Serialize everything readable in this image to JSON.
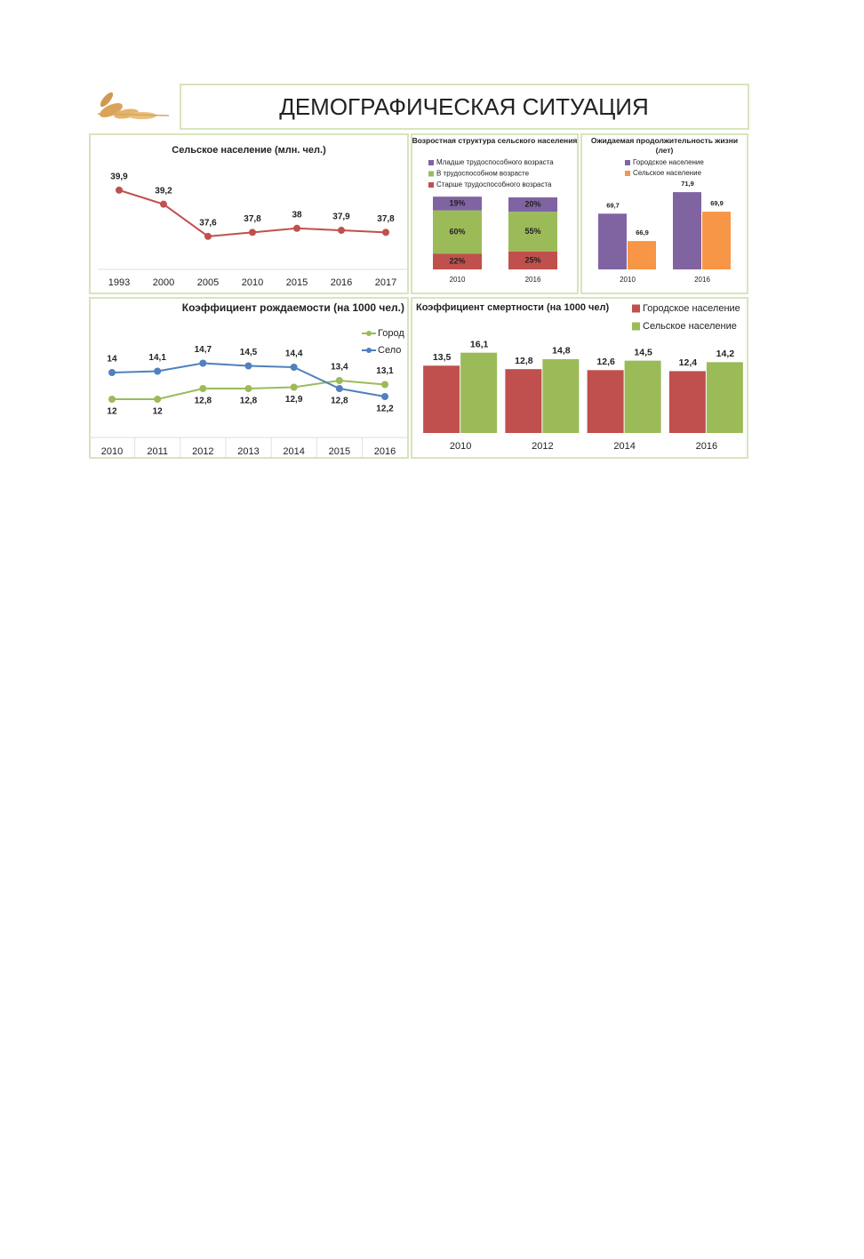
{
  "header": {
    "title": "ДЕМОГРАФИЧЕСКАЯ СИТУАЦИЯ"
  },
  "chart_data": [
    {
      "type": "line",
      "title": "Сельское население (млн. чел.)",
      "categories": [
        "1993",
        "2000",
        "2005",
        "2010",
        "2015",
        "2016",
        "2017"
      ],
      "values": [
        39.9,
        39.2,
        37.6,
        37.8,
        38,
        37.9,
        37.8
      ],
      "value_labels": [
        "39,9",
        "39,2",
        "37,6",
        "37,8",
        "38",
        "37,9",
        "37,8"
      ],
      "color": "#c0504d",
      "ylim": [
        36,
        41
      ]
    },
    {
      "type": "stacked_bar",
      "title": "Возростная структура сельского населения",
      "categories": [
        "2010",
        "2016"
      ],
      "series": [
        {
          "name": "Младше трудоспособного возраста",
          "color": "#8064a2",
          "values": [
            19,
            20
          ],
          "value_labels": [
            "19%",
            "20%"
          ]
        },
        {
          "name": "В трудоспособном возрасте",
          "color": "#9bbb59",
          "values": [
            60,
            55
          ],
          "value_labels": [
            "60%",
            "55%"
          ]
        },
        {
          "name": "Старше трудоспособного возраста",
          "color": "#c0504d",
          "values": [
            22,
            25
          ],
          "value_labels": [
            "22%",
            "25%"
          ]
        }
      ],
      "ylim": [
        0,
        100
      ]
    },
    {
      "type": "bar",
      "title": "Ожидаемая продолжительность жизни (лет)",
      "categories": [
        "2010",
        "2016"
      ],
      "series": [
        {
          "name": "Городское население",
          "color": "#8064a2",
          "values": [
            69.7,
            71.9
          ],
          "value_labels": [
            "69,7",
            "71,9"
          ]
        },
        {
          "name": "Сельское население",
          "color": "#f79646",
          "values": [
            66.9,
            69.9
          ],
          "value_labels": [
            "66,9",
            "69,9"
          ]
        }
      ],
      "ylim": [
        64,
        73
      ]
    },
    {
      "type": "line",
      "title": "Коэффициент рождаемости (на 1000 чел.)",
      "categories": [
        "2010",
        "2011",
        "2012",
        "2013",
        "2014",
        "2015",
        "2016"
      ],
      "series": [
        {
          "name": "Город",
          "color": "#9bbb59",
          "values": [
            12,
            12,
            12.8,
            12.8,
            12.9,
            13.4,
            13.1
          ],
          "value_labels": [
            "12",
            "12",
            "12,8",
            "12,8",
            "12,9",
            "13,4",
            "13,1"
          ]
        },
        {
          "name": "Село",
          "color": "#4f81bd",
          "values": [
            14,
            14.1,
            14.7,
            14.5,
            14.4,
            12.8,
            12.2
          ],
          "value_labels": [
            "14",
            "14,1",
            "14,7",
            "14,5",
            "14,4",
            "12,8",
            "12,2"
          ]
        }
      ],
      "ylim": [
        11,
        16
      ]
    },
    {
      "type": "bar",
      "title": "Коэффициент смертности (на 1000 чел)",
      "categories": [
        "2010",
        "2012",
        "2014",
        "2016"
      ],
      "series": [
        {
          "name": "Городское население",
          "color": "#c0504d",
          "values": [
            13.5,
            12.8,
            12.6,
            12.4
          ],
          "value_labels": [
            "13,5",
            "12,8",
            "12,6",
            "12,4"
          ]
        },
        {
          "name": "Сельское население",
          "color": "#9bbb59",
          "values": [
            16.1,
            14.8,
            14.5,
            14.2
          ],
          "value_labels": [
            "16,1",
            "14,8",
            "14,5",
            "14,2"
          ]
        }
      ],
      "ylim": [
        0,
        18
      ]
    }
  ]
}
